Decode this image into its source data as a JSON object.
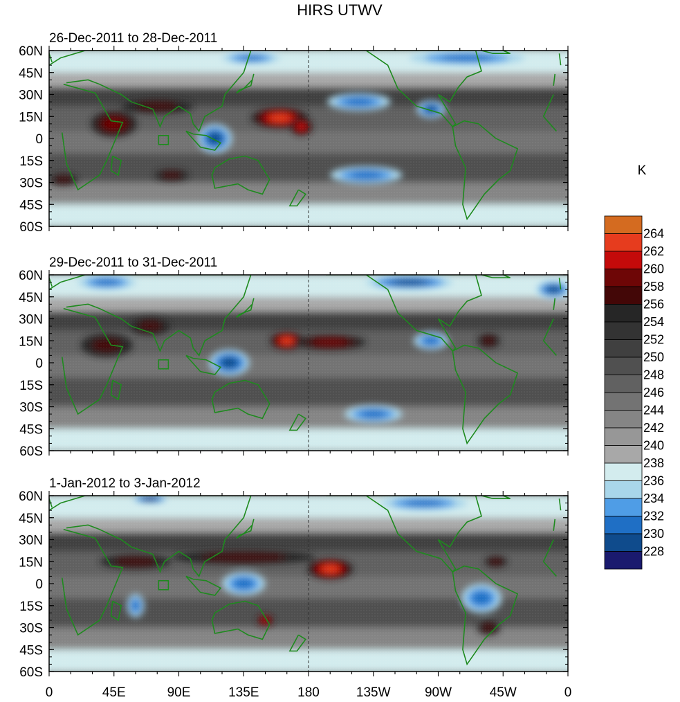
{
  "chart_data": {
    "type": "heatmap",
    "title": "HIRS UTWV",
    "colorbar": {
      "unit": "K",
      "levels": [
        228,
        230,
        232,
        234,
        236,
        238,
        240,
        242,
        244,
        246,
        248,
        250,
        252,
        254,
        256,
        258,
        260,
        262,
        264
      ],
      "colors": [
        "#1a1a6e",
        "#0f4b8c",
        "#1f6fc5",
        "#4f9de6",
        "#a9d6ea",
        "#d3ecee",
        "#a8a8a8",
        "#979797",
        "#858585",
        "#737373",
        "#616161",
        "#505050",
        "#404040",
        "#333333",
        "#262626",
        "#430707",
        "#6e0606",
        "#c40a0a",
        "#e63c1e",
        "#d46b20"
      ]
    },
    "x_axis": {
      "ticks": [
        "0",
        "45E",
        "90E",
        "135E",
        "180",
        "135W",
        "90W",
        "45W",
        "0"
      ],
      "range_deg": [
        0,
        360
      ]
    },
    "y_axis": {
      "ticks": [
        "60N",
        "45N",
        "30N",
        "15N",
        "0",
        "15S",
        "30S",
        "45S",
        "60S"
      ],
      "range_deg": [
        60,
        -60
      ]
    },
    "panels": [
      {
        "label": "26-Dec-2011 to 28-Dec-2011",
        "features": [
          {
            "lon": 45,
            "lat": 10,
            "value": 260,
            "rx": 16,
            "ry": 9
          },
          {
            "lon": 75,
            "lat": 22,
            "value": 258,
            "rx": 25,
            "ry": 5
          },
          {
            "lon": 160,
            "lat": 14,
            "value": 263,
            "rx": 20,
            "ry": 7
          },
          {
            "lon": 175,
            "lat": 8,
            "value": 262,
            "rx": 8,
            "ry": 6
          },
          {
            "lon": 85,
            "lat": -25,
            "value": 257,
            "rx": 12,
            "ry": 4
          },
          {
            "lon": 10,
            "lat": -28,
            "value": 257,
            "rx": 10,
            "ry": 4
          },
          {
            "lon": 215,
            "lat": 25,
            "value": 233,
            "rx": 22,
            "ry": 6
          },
          {
            "lon": 265,
            "lat": 20,
            "value": 231,
            "rx": 10,
            "ry": 6
          },
          {
            "lon": 115,
            "lat": 0,
            "value": 230,
            "rx": 12,
            "ry": 10
          },
          {
            "lon": 220,
            "lat": -25,
            "value": 232,
            "rx": 25,
            "ry": 6
          },
          {
            "lon": 140,
            "lat": 55,
            "value": 232,
            "rx": 20,
            "ry": 4
          },
          {
            "lon": 290,
            "lat": 55,
            "value": 232,
            "rx": 40,
            "ry": 5
          }
        ]
      },
      {
        "label": "29-Dec-2011 to 31-Dec-2011",
        "features": [
          {
            "lon": 165,
            "lat": 15,
            "value": 263,
            "rx": 12,
            "ry": 6
          },
          {
            "lon": 195,
            "lat": 14,
            "value": 259,
            "rx": 25,
            "ry": 5
          },
          {
            "lon": 40,
            "lat": 12,
            "value": 258,
            "rx": 18,
            "ry": 8
          },
          {
            "lon": 70,
            "lat": 25,
            "value": 258,
            "rx": 14,
            "ry": 6
          },
          {
            "lon": 305,
            "lat": 15,
            "value": 258,
            "rx": 8,
            "ry": 5
          },
          {
            "lon": 125,
            "lat": 0,
            "value": 231,
            "rx": 14,
            "ry": 9
          },
          {
            "lon": 225,
            "lat": -35,
            "value": 232,
            "rx": 20,
            "ry": 6
          },
          {
            "lon": 265,
            "lat": 15,
            "value": 232,
            "rx": 12,
            "ry": 6
          },
          {
            "lon": 250,
            "lat": 55,
            "value": 230,
            "rx": 30,
            "ry": 5
          },
          {
            "lon": 40,
            "lat": 55,
            "value": 232,
            "rx": 20,
            "ry": 5
          },
          {
            "lon": 350,
            "lat": 50,
            "value": 230,
            "rx": 12,
            "ry": 6
          }
        ]
      },
      {
        "label": "1-Jan-2012 to 3-Jan-2012",
        "features": [
          {
            "lon": 195,
            "lat": 10,
            "value": 263,
            "rx": 16,
            "ry": 7
          },
          {
            "lon": 135,
            "lat": 18,
            "value": 258,
            "rx": 50,
            "ry": 5
          },
          {
            "lon": 60,
            "lat": 15,
            "value": 257,
            "rx": 25,
            "ry": 5
          },
          {
            "lon": 150,
            "lat": -25,
            "value": 262,
            "rx": 6,
            "ry": 4
          },
          {
            "lon": 310,
            "lat": 15,
            "value": 258,
            "rx": 8,
            "ry": 4
          },
          {
            "lon": 305,
            "lat": -30,
            "value": 257,
            "rx": 8,
            "ry": 5
          },
          {
            "lon": 135,
            "lat": 0,
            "value": 232,
            "rx": 15,
            "ry": 8
          },
          {
            "lon": 300,
            "lat": -10,
            "value": 232,
            "rx": 14,
            "ry": 10
          },
          {
            "lon": 70,
            "lat": 58,
            "value": 229,
            "rx": 12,
            "ry": 3
          },
          {
            "lon": 260,
            "lat": 55,
            "value": 232,
            "rx": 30,
            "ry": 5
          },
          {
            "lon": 60,
            "lat": -15,
            "value": 233,
            "rx": 6,
            "ry": 8
          }
        ]
      }
    ]
  }
}
